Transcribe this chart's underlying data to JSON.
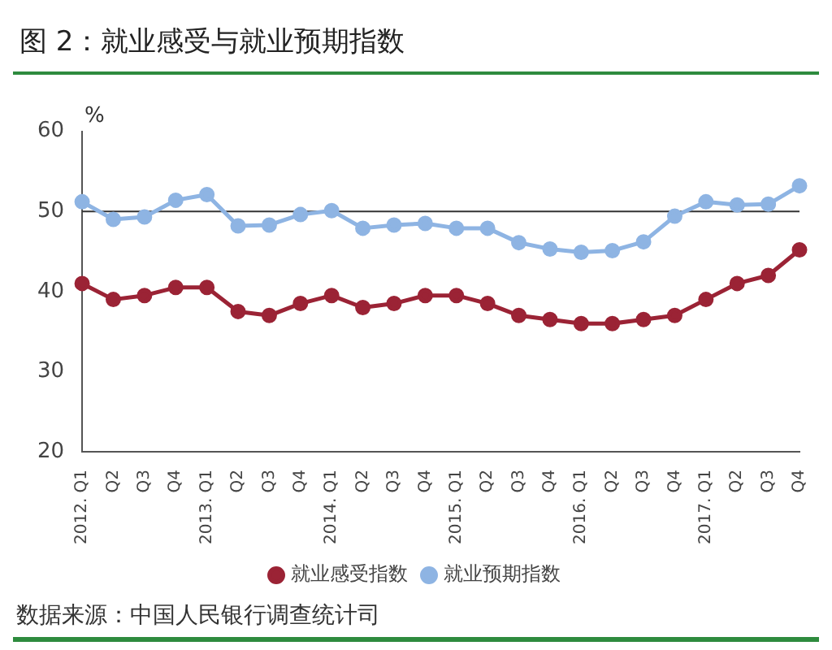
{
  "chart_data": {
    "type": "line",
    "title": "图 2：就业感受与就业预期指数",
    "ylabel": "%",
    "categories": [
      "2012. Q1",
      "Q2",
      "Q3",
      "Q4",
      "2013. Q1",
      "Q2",
      "Q3",
      "Q4",
      "2014. Q1",
      "Q2",
      "Q3",
      "Q4",
      "2015. Q1",
      "Q2",
      "Q3",
      "Q4",
      "2016. Q1",
      "Q2",
      "Q3",
      "Q4",
      "2017. Q1",
      "Q2",
      "Q3",
      "Q4"
    ],
    "series": [
      {
        "name": "就业感受指数",
        "color": "#9b2335",
        "values": [
          41,
          39,
          39.5,
          40.5,
          40.5,
          37.5,
          37,
          38.5,
          39.5,
          38,
          38.5,
          39.5,
          39.5,
          38.5,
          37,
          36.5,
          36,
          36,
          36.5,
          37,
          39,
          41,
          42,
          45.2
        ]
      },
      {
        "name": "就业预期指数",
        "color": "#8eb4e3",
        "values": [
          51.2,
          49,
          49.3,
          51.4,
          52.1,
          48.2,
          48.3,
          49.6,
          50.1,
          47.9,
          48.3,
          48.5,
          47.9,
          47.9,
          46.1,
          45.3,
          44.9,
          45.1,
          46.2,
          49.4,
          51.2,
          50.8,
          50.9,
          53.2
        ]
      }
    ],
    "ylim": [
      20,
      60
    ],
    "yticks": [
      20,
      30,
      40,
      50,
      60
    ],
    "grid": false,
    "legend": "bottom",
    "marker": "circle",
    "line_style": "solid",
    "ref_lines": [
      {
        "axis": "y",
        "value": 50,
        "color": "#333333"
      }
    ],
    "annotations": [
      "数据来源：中国人民银行调查统计司"
    ]
  }
}
